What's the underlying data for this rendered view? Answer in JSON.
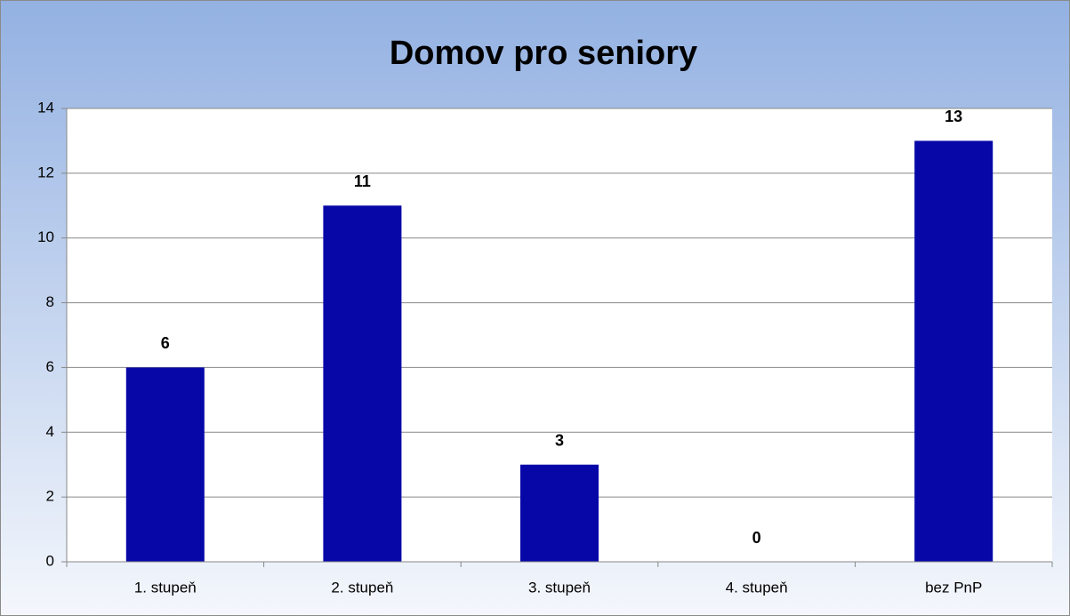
{
  "chart_data": {
    "type": "bar",
    "title": "Domov pro seniory",
    "categories": [
      "1. stupeň",
      "2. stupeň",
      "3. stupeň",
      "4. stupeň",
      "bez PnP"
    ],
    "values": [
      6,
      11,
      3,
      0,
      13
    ],
    "color": "#0707a8",
    "ylim": [
      0,
      14
    ],
    "yticks": [
      0,
      2,
      4,
      6,
      8,
      10,
      12,
      14
    ],
    "grid": true
  }
}
